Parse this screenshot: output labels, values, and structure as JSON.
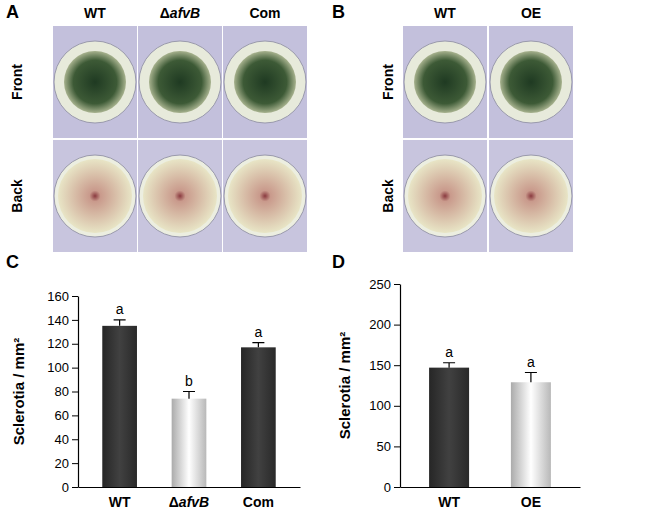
{
  "figure_panels": [
    {
      "label": "A",
      "columns": [
        "WT",
        "ΔafvB",
        "Com"
      ],
      "rows": [
        "Front",
        "Back"
      ]
    },
    {
      "label": "B",
      "columns": [
        "WT",
        "OE"
      ],
      "rows": [
        "Front",
        "Back"
      ]
    }
  ],
  "chart_data": [
    {
      "type": "bar",
      "title": "C",
      "categories": [
        "WT",
        "ΔafvB",
        "Com"
      ],
      "values": [
        135,
        74,
        117
      ],
      "errors": [
        5,
        6,
        4
      ],
      "significance": [
        "a",
        "b",
        "a"
      ],
      "colors": [
        "#2f2f2f",
        "#d4d4d4",
        "#2f2f2f"
      ],
      "y_label": "Sclerotia / mm²",
      "ylim": [
        0,
        160
      ],
      "yticks": [
        0,
        20,
        40,
        60,
        80,
        100,
        120,
        140,
        160
      ],
      "grid": false
    },
    {
      "type": "bar",
      "title": "D",
      "categories": [
        "WT",
        "OE"
      ],
      "values": [
        147,
        129
      ],
      "errors": [
        6,
        12
      ],
      "significance": [
        "a",
        "a"
      ],
      "colors": [
        "#2f2f2f",
        "#d4d4d4"
      ],
      "y_label": "Sclerotia / mm²",
      "ylim": [
        0,
        250
      ],
      "yticks": [
        0,
        50,
        100,
        150,
        200,
        250
      ],
      "grid": false
    }
  ]
}
